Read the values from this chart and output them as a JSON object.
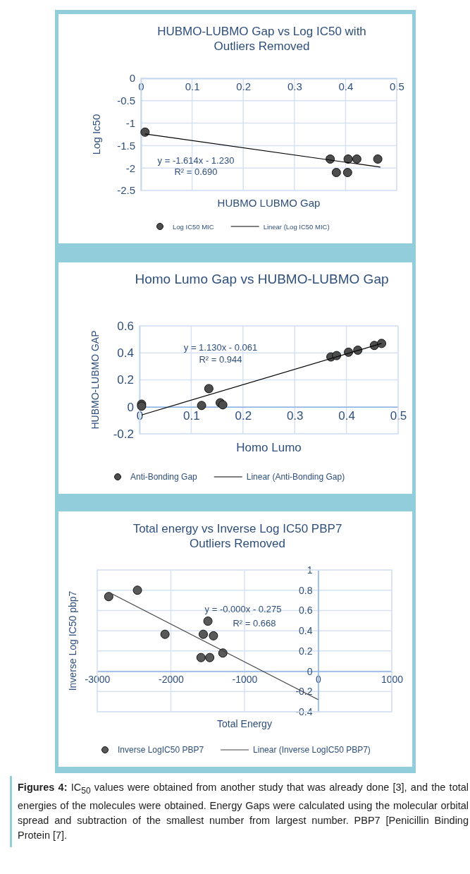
{
  "chart_data": [
    {
      "type": "scatter",
      "title": "HUBMO-LUBMO Gap vs Log IC50 with Outliers Removed",
      "xlabel": "HUBMO LUBMO Gap",
      "ylabel": "Log Ic50",
      "xlim": [
        0,
        0.5
      ],
      "xticks": [
        0,
        0.1,
        0.2,
        0.3,
        0.4,
        0.5
      ],
      "ylim": [
        -2.5,
        0
      ],
      "yticks": [
        -2.5,
        -2,
        -1.5,
        -1,
        -0.5,
        0
      ],
      "grid": true,
      "legend": "bottom",
      "series": [
        {
          "name": "Log IC50 MIC",
          "marker": "circle",
          "color": "#4d4d4d",
          "x": [
            0.008,
            0.37,
            0.405,
            0.422,
            0.463,
            0.382,
            0.404
          ],
          "values": [
            -1.2,
            -1.8,
            -1.8,
            -1.8,
            -1.8,
            -2.1,
            -2.1
          ]
        },
        {
          "name": "Linear (Log IC50 MIC)",
          "type": "line",
          "color": "#000000",
          "x": [
            0.008,
            0.468
          ],
          "values": [
            -1.24,
            -1.98
          ]
        }
      ],
      "annotations": [
        "y = -1.614x - 1.230",
        "R² = 0.690"
      ]
    },
    {
      "type": "scatter",
      "title": "Homo Lumo Gap vs HUBMO-LUBMO Gap",
      "xlabel": "Homo Lumo",
      "ylabel": "HUBMO-LUBMO GAP",
      "xlim": [
        0,
        0.5
      ],
      "xticks": [
        0,
        0.1,
        0.2,
        0.3,
        0.4,
        0.5
      ],
      "ylim": [
        -0.2,
        0.6
      ],
      "yticks": [
        -0.2,
        0,
        0.2,
        0.4,
        0.6
      ],
      "grid": true,
      "legend": "bottom",
      "series": [
        {
          "name": "Anti-Bonding Gap",
          "marker": "circle",
          "color": "#4d4d4d",
          "x": [
            0.004,
            0.004,
            0.12,
            0.134,
            0.156,
            0.161,
            0.37,
            0.381,
            0.404,
            0.422,
            0.454,
            0.468
          ],
          "values": [
            0.02,
            0.005,
            0.01,
            0.135,
            0.03,
            0.015,
            0.37,
            0.38,
            0.405,
            0.42,
            0.455,
            0.47
          ]
        },
        {
          "name": "Linear (Anti-Bonding Gap)",
          "type": "line",
          "color": "#000000",
          "x": [
            0.004,
            0.468
          ],
          "values": [
            -0.06,
            0.47
          ]
        }
      ],
      "annotations": [
        "y = 1.130x - 0.061",
        "R² = 0.944"
      ]
    },
    {
      "type": "scatter",
      "title": "Total energy vs Inverse Log IC50 PBP7 Outliers Removed",
      "xlabel": "Total Energy",
      "ylabel": "Inverse Log IC50 pbp7",
      "xlim": [
        -3000,
        1000
      ],
      "xticks": [
        -3000,
        -2000,
        -1000,
        0,
        1000
      ],
      "ylim": [
        -0.4,
        1
      ],
      "yticks": [
        -0.4,
        -0.2,
        0,
        0.2,
        0.4,
        0.6,
        0.8,
        1
      ],
      "grid": true,
      "legend": "bottom",
      "series": [
        {
          "name": "Inverse LogIC50 PBP7",
          "marker": "circle",
          "color": "#595959",
          "x": [
            -2844,
            -2454,
            -2080,
            -1560,
            -1497,
            -1422,
            -1591,
            -1472,
            -1294
          ],
          "values": [
            0.737,
            0.8,
            0.365,
            0.365,
            0.495,
            0.35,
            0.135,
            0.135,
            0.18
          ]
        },
        {
          "name": "Linear (Inverse LogIC50 PBP7)",
          "type": "line",
          "color": "#404040",
          "x": [
            -2844,
            0
          ],
          "values": [
            0.78,
            -0.28
          ]
        }
      ],
      "annotations": [
        "y = -0.000x - 0.275",
        "R² = 0.668",
        "Figures 4: IC$_{50}$ values were obtained from another study that was already done [3], and the total energies of the molecules were obtained. Energy Gaps were calculated using the molecular orbital spread and subtraction of the smallest number from largest number. PBP7 [Penicillin Binding Protein [7]."
      ]
    }
  ]
}
